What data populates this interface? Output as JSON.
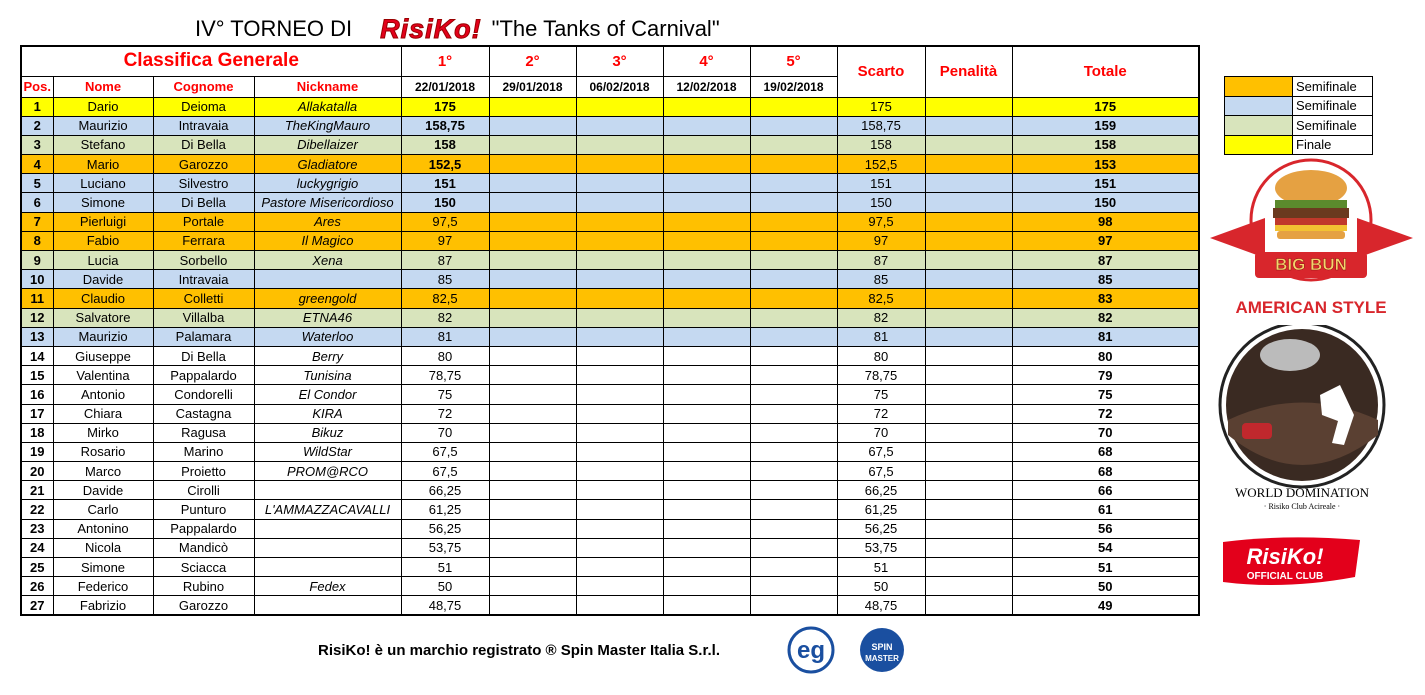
{
  "header": {
    "prefix": "IV° TORNEO DI",
    "logo": "RisiKo!",
    "subtitle": "\"The Tanks of Carnival\""
  },
  "table": {
    "group_title": "Classifica Generale",
    "rounds": [
      "1°",
      "2°",
      "3°",
      "4°",
      "5°"
    ],
    "dates": [
      "22/01/2018",
      "29/01/2018",
      "06/02/2018",
      "12/02/2018",
      "19/02/2018"
    ],
    "columns": [
      "Pos.",
      "Nome",
      "Cognome",
      "Nickname"
    ],
    "scarto": "Scarto",
    "penalita": "Penalità",
    "totale": "Totale",
    "rows": [
      {
        "pos": "1",
        "nome": "Dario",
        "cognome": "Deioma",
        "nickname": "Allakatalla",
        "r1": "175",
        "r1_bold": true,
        "scarto": "175",
        "totale": "175",
        "color": "#ffff00"
      },
      {
        "pos": "2",
        "nome": "Maurizio",
        "cognome": "Intravaia",
        "nickname": "TheKingMauro",
        "r1": "158,75",
        "r1_bold": true,
        "scarto": "158,75",
        "totale": "159",
        "color": "#c5d9f1"
      },
      {
        "pos": "3",
        "nome": "Stefano",
        "cognome": "Di Bella",
        "nickname": "Dibellaizer",
        "r1": "158",
        "r1_bold": true,
        "scarto": "158",
        "totale": "158",
        "color": "#d8e4bc"
      },
      {
        "pos": "4",
        "nome": "Mario",
        "cognome": "Garozzo",
        "nickname": "Gladiatore",
        "r1": "152,5",
        "r1_bold": true,
        "scarto": "152,5",
        "totale": "153",
        "color": "#ffc000"
      },
      {
        "pos": "5",
        "nome": "Luciano",
        "cognome": "Silvestro",
        "nickname": "luckygrigio",
        "r1": "151",
        "r1_bold": true,
        "scarto": "151",
        "totale": "151",
        "color": "#c5d9f1"
      },
      {
        "pos": "6",
        "nome": "Simone",
        "cognome": "Di Bella",
        "nickname": "Pastore Misericordioso",
        "r1": "150",
        "r1_bold": true,
        "scarto": "150",
        "totale": "150",
        "color": "#c5d9f1"
      },
      {
        "pos": "7",
        "nome": "Pierluigi",
        "cognome": "Portale",
        "nickname": "Ares",
        "r1": "97,5",
        "scarto": "97,5",
        "totale": "98",
        "color": "#ffc000"
      },
      {
        "pos": "8",
        "nome": "Fabio",
        "cognome": "Ferrara",
        "nickname": "Il Magico",
        "r1": "97",
        "scarto": "97",
        "totale": "97",
        "color": "#ffc000"
      },
      {
        "pos": "9",
        "nome": "Lucia",
        "cognome": "Sorbello",
        "nickname": "Xena",
        "r1": "87",
        "scarto": "87",
        "totale": "87",
        "color": "#d8e4bc"
      },
      {
        "pos": "10",
        "nome": "Davide",
        "cognome": "Intravaia",
        "r1": "85",
        "scarto": "85",
        "totale": "85",
        "color": "#c5d9f1"
      },
      {
        "pos": "11",
        "nome": "Claudio",
        "cognome": "Colletti",
        "nickname": "greengold",
        "r1": "82,5",
        "scarto": "82,5",
        "totale": "83",
        "color": "#ffc000"
      },
      {
        "pos": "12",
        "nome": "Salvatore",
        "cognome": "Villalba",
        "nickname": "ETNA46",
        "r1": "82",
        "scarto": "82",
        "totale": "82",
        "color": "#d8e4bc"
      },
      {
        "pos": "13",
        "nome": "Maurizio",
        "cognome": "Palamara",
        "nickname": "Waterloo",
        "r1": "81",
        "scarto": "81",
        "totale": "81",
        "color": "#c5d9f1"
      },
      {
        "pos": "14",
        "nome": "Giuseppe",
        "cognome": "Di Bella",
        "nickname": "Berry",
        "r1": "80",
        "scarto": "80",
        "totale": "80"
      },
      {
        "pos": "15",
        "nome": "Valentina",
        "cognome": "Pappalardo",
        "nickname": "Tunisina",
        "r1": "78,75",
        "scarto": "78,75",
        "totale": "79"
      },
      {
        "pos": "16",
        "nome": "Antonio",
        "cognome": "Condorelli",
        "nickname": "El Condor",
        "r1": "75",
        "scarto": "75",
        "totale": "75"
      },
      {
        "pos": "17",
        "nome": "Chiara",
        "cognome": "Castagna",
        "nickname": "KIRA",
        "r1": "72",
        "scarto": "72",
        "totale": "72"
      },
      {
        "pos": "18",
        "nome": "Mirko",
        "cognome": "Ragusa",
        "nickname": "Bikuz",
        "r1": "70",
        "scarto": "70",
        "totale": "70"
      },
      {
        "pos": "19",
        "nome": "Rosario",
        "cognome": "Marino",
        "nickname": "WildStar",
        "r1": "67,5",
        "scarto": "67,5",
        "totale": "68"
      },
      {
        "pos": "20",
        "nome": "Marco",
        "cognome": "Proietto",
        "nickname": "PROM@RCO",
        "r1": "67,5",
        "scarto": "67,5",
        "totale": "68"
      },
      {
        "pos": "21",
        "nome": "Davide",
        "cognome": "Cirolli",
        "r1": "66,25",
        "scarto": "66,25",
        "totale": "66"
      },
      {
        "pos": "22",
        "nome": "Carlo",
        "cognome": "Punturo",
        "nickname": "L'AMMAZZACAVALLI",
        "r1": "61,25",
        "scarto": "61,25",
        "totale": "61"
      },
      {
        "pos": "23",
        "nome": "Antonino",
        "cognome": "Pappalardo",
        "r1": "56,25",
        "scarto": "56,25",
        "totale": "56"
      },
      {
        "pos": "24",
        "nome": "Nicola",
        "cognome": "Mandicò",
        "r1": "53,75",
        "scarto": "53,75",
        "totale": "54"
      },
      {
        "pos": "25",
        "nome": "Simone",
        "cognome": "Sciacca",
        "r1": "51",
        "scarto": "51",
        "totale": "51"
      },
      {
        "pos": "26",
        "nome": "Federico",
        "cognome": "Rubino",
        "nickname": "Fedex",
        "r1": "50",
        "scarto": "50",
        "totale": "50"
      },
      {
        "pos": "27",
        "nome": "Fabrizio",
        "cognome": "Garozzo",
        "r1": "48,75",
        "scarto": "48,75",
        "totale": "49"
      }
    ]
  },
  "legend": [
    {
      "color": "#ffc000",
      "label": "Semifinale"
    },
    {
      "color": "#c5d9f1",
      "label": "Semifinale"
    },
    {
      "color": "#d8e4bc",
      "label": "Semifinale"
    },
    {
      "color": "#ffff00",
      "label": "Finale"
    }
  ],
  "logos": {
    "big_bun": "BIG BUN",
    "american_style": "AMERICAN STYLE",
    "world_domination": "WORLD DOMINATION",
    "club": "· Risiko Club Acireale ·",
    "risiko": "RisiKo!",
    "official": "OFFICIAL CLUB"
  },
  "footer": {
    "text": "RisiKo! è un marchio registrato ® Spin Master Italia S.r.l.",
    "eg": "eg",
    "spin": "SPIN",
    "master": "MASTER"
  }
}
